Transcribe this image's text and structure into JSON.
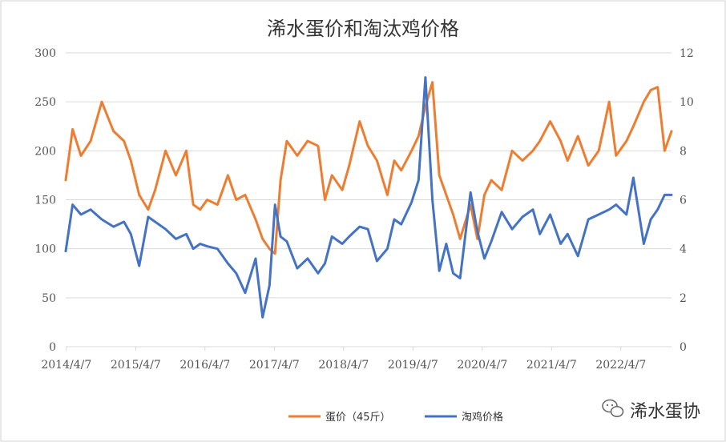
{
  "chart_data": {
    "type": "line",
    "title": "浠水蛋价和淘汰鸡价格",
    "x_tick_labels": [
      "2014/4/7",
      "2015/4/7",
      "2016/4/7",
      "2017/4/7",
      "2018/4/7",
      "2019/4/7",
      "2020/4/7",
      "2021/4/7",
      "2022/4/7"
    ],
    "x_range": [
      2014.26,
      2023.0
    ],
    "y_left": {
      "range": [
        0,
        300
      ],
      "ticks": [
        0,
        50,
        100,
        150,
        200,
        250,
        300
      ]
    },
    "y_right": {
      "range": [
        0,
        12
      ],
      "ticks": [
        0,
        2,
        4,
        6,
        8,
        10,
        12
      ]
    },
    "grid": true,
    "legend_position": "bottom",
    "series": [
      {
        "name": "蛋价（45斤）",
        "axis": "left",
        "color": "#ED7D31",
        "x": [
          2014.26,
          2014.36,
          2014.48,
          2014.62,
          2014.78,
          2014.95,
          2015.1,
          2015.2,
          2015.32,
          2015.45,
          2015.55,
          2015.7,
          2015.85,
          2016.0,
          2016.1,
          2016.2,
          2016.3,
          2016.45,
          2016.6,
          2016.72,
          2016.85,
          2017.0,
          2017.1,
          2017.2,
          2017.28,
          2017.36,
          2017.45,
          2017.6,
          2017.75,
          2017.9,
          2018.0,
          2018.1,
          2018.25,
          2018.35,
          2018.5,
          2018.62,
          2018.75,
          2018.9,
          2019.0,
          2019.1,
          2019.25,
          2019.35,
          2019.45,
          2019.55,
          2019.65,
          2019.75,
          2019.85,
          2019.95,
          2020.1,
          2020.2,
          2020.3,
          2020.4,
          2020.55,
          2020.7,
          2020.85,
          2021.0,
          2021.1,
          2021.25,
          2021.4,
          2021.5,
          2021.65,
          2021.8,
          2021.95,
          2022.1,
          2022.2,
          2022.35,
          2022.45,
          2022.6,
          2022.7,
          2022.8,
          2022.9,
          2023.0
        ],
        "y": [
          170,
          222,
          195,
          210,
          250,
          220,
          210,
          190,
          155,
          140,
          160,
          200,
          175,
          200,
          145,
          140,
          150,
          145,
          175,
          150,
          155,
          130,
          110,
          100,
          95,
          170,
          210,
          195,
          210,
          205,
          150,
          175,
          160,
          185,
          230,
          205,
          190,
          155,
          190,
          180,
          200,
          215,
          245,
          270,
          175,
          155,
          135,
          110,
          145,
          110,
          155,
          170,
          160,
          200,
          190,
          200,
          210,
          230,
          210,
          190,
          215,
          185,
          200,
          250,
          195,
          210,
          225,
          250,
          262,
          265,
          200,
          220
        ]
      },
      {
        "name": "淘鸡价格",
        "axis": "right",
        "color": "#4472C4",
        "x": [
          2014.26,
          2014.36,
          2014.48,
          2014.62,
          2014.78,
          2014.95,
          2015.1,
          2015.2,
          2015.32,
          2015.45,
          2015.55,
          2015.7,
          2015.85,
          2016.0,
          2016.1,
          2016.2,
          2016.3,
          2016.45,
          2016.6,
          2016.72,
          2016.85,
          2017.0,
          2017.1,
          2017.2,
          2017.28,
          2017.36,
          2017.45,
          2017.6,
          2017.75,
          2017.9,
          2018.0,
          2018.1,
          2018.25,
          2018.35,
          2018.5,
          2018.62,
          2018.75,
          2018.9,
          2019.0,
          2019.1,
          2019.25,
          2019.35,
          2019.45,
          2019.55,
          2019.65,
          2019.75,
          2019.85,
          2019.95,
          2020.1,
          2020.2,
          2020.3,
          2020.4,
          2020.55,
          2020.7,
          2020.85,
          2021.0,
          2021.1,
          2021.25,
          2021.4,
          2021.5,
          2021.65,
          2021.8,
          2021.95,
          2022.1,
          2022.2,
          2022.35,
          2022.45,
          2022.6,
          2022.7,
          2022.8,
          2022.9,
          2023.0
        ],
        "y": [
          3.9,
          5.8,
          5.4,
          5.6,
          5.2,
          4.9,
          5.1,
          4.6,
          3.3,
          5.3,
          5.1,
          4.8,
          4.4,
          4.6,
          4.0,
          4.2,
          4.1,
          4.0,
          3.4,
          3.0,
          2.2,
          3.6,
          1.2,
          2.5,
          5.8,
          4.5,
          4.3,
          3.2,
          3.6,
          3.0,
          3.4,
          4.5,
          4.2,
          4.5,
          4.9,
          4.8,
          3.5,
          4.0,
          5.2,
          5.0,
          5.9,
          6.8,
          11.0,
          6.0,
          3.1,
          4.2,
          3.0,
          2.8,
          6.3,
          4.7,
          3.6,
          4.3,
          5.5,
          4.8,
          5.3,
          5.6,
          4.6,
          5.4,
          4.2,
          4.6,
          3.7,
          5.2,
          5.4,
          5.6,
          5.8,
          5.4,
          6.9,
          4.2,
          5.2,
          5.6,
          6.2,
          6.2
        ]
      }
    ]
  },
  "watermark": {
    "text": "浠水蛋协",
    "icon": "wechat-icon"
  }
}
